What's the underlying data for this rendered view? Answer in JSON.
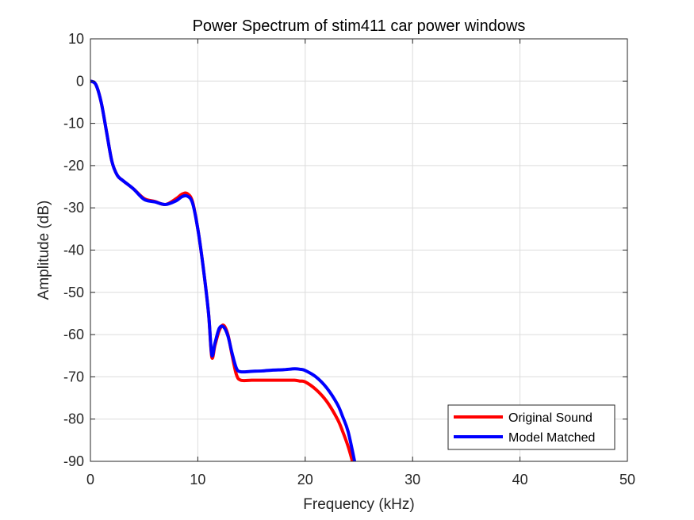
{
  "chart_data": {
    "type": "line",
    "title": "Power Spectrum of stim411 car power windows",
    "xlabel": "Frequency (kHz)",
    "ylabel": "Amplitude (dB)",
    "xlim": [
      0,
      50
    ],
    "ylim": [
      -90,
      10
    ],
    "xticks": [
      0,
      10,
      20,
      30,
      40,
      50
    ],
    "yticks": [
      10,
      0,
      -10,
      -20,
      -30,
      -40,
      -50,
      -60,
      -70,
      -80,
      -90
    ],
    "xtick_labels": [
      "0",
      "10",
      "20",
      "30",
      "40",
      "50"
    ],
    "ytick_labels": [
      "10",
      "0",
      "-10",
      "-20",
      "-30",
      "-40",
      "-50",
      "-60",
      "-70",
      "-80",
      "-90"
    ],
    "grid": true,
    "legend_position": "bottom-right",
    "series": [
      {
        "name": "Original Sound",
        "color": "#ff0000",
        "x": [
          0,
          0.5,
          1.0,
          1.5,
          2.0,
          2.5,
          3.0,
          4.0,
          5.0,
          6.0,
          7.0,
          8.0,
          8.5,
          9.0,
          9.5,
          10.0,
          10.5,
          11.0,
          11.3,
          11.6,
          12.0,
          12.4,
          12.8,
          13.2,
          13.6,
          14.0,
          15.0,
          16.0,
          17.0,
          18.0,
          19.0,
          19.5,
          20.0,
          21.0,
          22.0,
          23.0,
          23.5,
          24.0,
          24.4
        ],
        "y": [
          0,
          -0.8,
          -5,
          -12,
          -19,
          -22.3,
          -23.5,
          -25.5,
          -27.8,
          -28.5,
          -29.2,
          -27.8,
          -26.8,
          -26.6,
          -28.5,
          -35,
          -44,
          -55,
          -65.3,
          -62.5,
          -59,
          -57.8,
          -60,
          -65,
          -69.5,
          -70.8,
          -70.8,
          -70.8,
          -70.8,
          -70.8,
          -70.8,
          -71,
          -71.2,
          -73,
          -75.8,
          -80,
          -83,
          -86.5,
          -90
        ]
      },
      {
        "name": "Model Matched",
        "color": "#0000ff",
        "x": [
          0,
          0.5,
          1.0,
          1.5,
          2.0,
          2.5,
          3.0,
          4.0,
          5.0,
          6.0,
          7.0,
          8.0,
          8.5,
          9.0,
          9.5,
          10.0,
          10.5,
          11.0,
          11.3,
          11.6,
          12.0,
          12.4,
          12.8,
          13.2,
          13.6,
          14.0,
          15.0,
          16.0,
          17.0,
          18.0,
          19.0,
          19.5,
          20.0,
          21.0,
          22.0,
          23.0,
          23.5,
          24.0,
          24.6
        ],
        "y": [
          0,
          -0.8,
          -5,
          -12,
          -19,
          -22.3,
          -23.5,
          -25.5,
          -28,
          -28.6,
          -29.2,
          -28.3,
          -27.4,
          -27.2,
          -28.8,
          -35,
          -44,
          -55,
          -64.8,
          -62,
          -58.5,
          -58.2,
          -60.3,
          -64.5,
          -68,
          -68.8,
          -68.7,
          -68.6,
          -68.4,
          -68.3,
          -68.1,
          -68.2,
          -68.5,
          -70,
          -72.6,
          -76.5,
          -79.5,
          -83,
          -90
        ]
      }
    ]
  }
}
